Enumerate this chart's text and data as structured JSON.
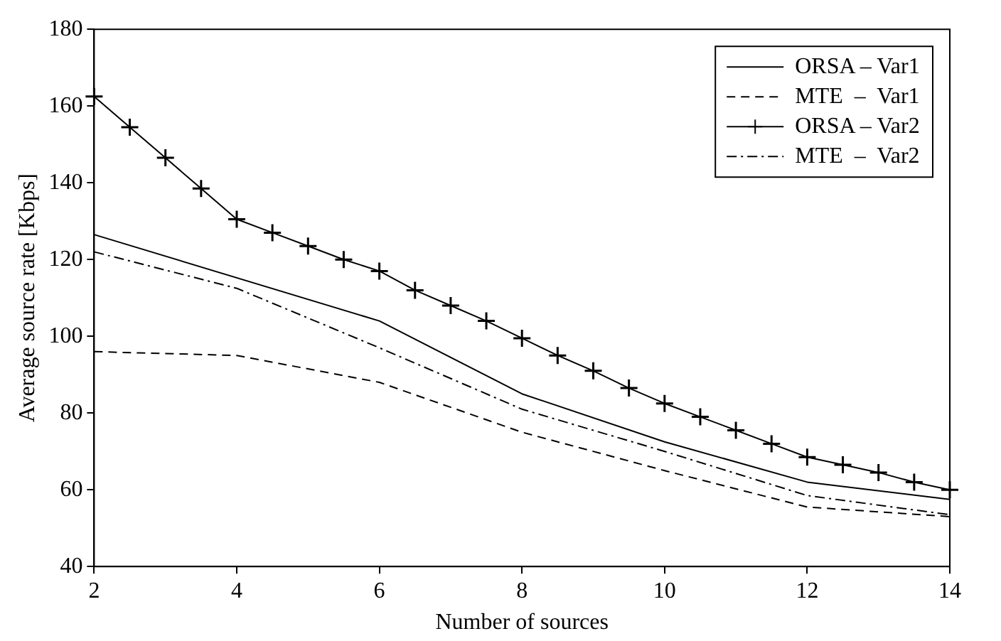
{
  "chart_data": {
    "type": "line",
    "xlabel": "Number of sources",
    "ylabel": "Average source rate [Kbps]",
    "xlim": [
      2,
      14
    ],
    "xticks": [
      2,
      4,
      6,
      8,
      10,
      12,
      14
    ],
    "ylim": [
      40,
      180
    ],
    "yticks": [
      40,
      60,
      80,
      100,
      120,
      140,
      160,
      180
    ],
    "legend": "top right",
    "series": [
      {
        "name": "ORSA – Var1",
        "color": "#000000",
        "line_style": "solid",
        "marker": "none",
        "x": [
          2,
          6,
          8,
          10,
          12,
          14
        ],
        "values": [
          126.5,
          104,
          85,
          72.5,
          62,
          57.5
        ]
      },
      {
        "name": "MTE  –  Var1",
        "color": "#000000",
        "line_style": "dashed",
        "marker": "none",
        "x": [
          2,
          4,
          6,
          8,
          10,
          12,
          14
        ],
        "values": [
          96,
          95,
          88,
          75,
          65,
          55.5,
          53
        ]
      },
      {
        "name": "ORSA – Var2",
        "color": "#000000",
        "line_style": "solid",
        "marker": "cross",
        "x": [
          2,
          2.5,
          3,
          3.5,
          4,
          4.5,
          5,
          5.5,
          6,
          6.5,
          7,
          7.5,
          8,
          8.5,
          9,
          9.5,
          10,
          10.5,
          11,
          11.5,
          12,
          12.5,
          13,
          13.5,
          14
        ],
        "values": [
          162.5,
          154.5,
          146.5,
          138.5,
          130.5,
          127,
          123.5,
          120,
          117,
          112,
          108,
          104,
          99.5,
          95,
          91,
          86.5,
          82.5,
          79,
          75.5,
          72,
          68.5,
          66.5,
          64.5,
          62,
          60
        ]
      },
      {
        "name": "MTE  –  Var2",
        "color": "#000000",
        "line_style": "dashdot",
        "marker": "none",
        "x": [
          2,
          4,
          6,
          8,
          10,
          12,
          14
        ],
        "values": [
          122,
          112.5,
          97,
          81,
          70,
          58.5,
          53.5
        ]
      }
    ]
  }
}
